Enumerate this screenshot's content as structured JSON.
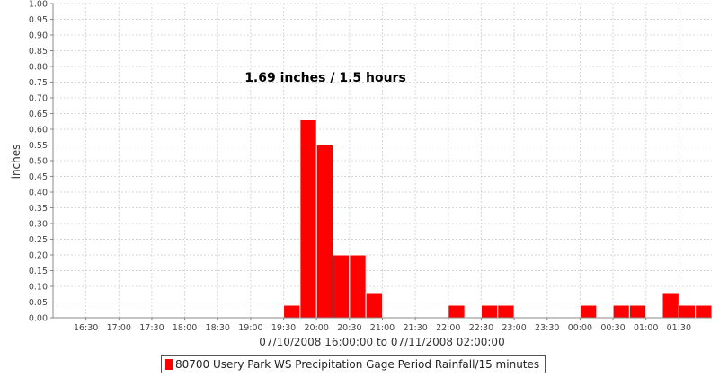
{
  "chart_data": {
    "type": "bar",
    "annotation": "1.69 inches / 1.5 hours",
    "xlabel": "07/10/2008 16:00:00 to 07/11/2008 02:00:00",
    "ylabel": "inches",
    "ylim": [
      0,
      1.0
    ],
    "y_ticks": [
      "0.00",
      "0.05",
      "0.10",
      "0.15",
      "0.20",
      "0.25",
      "0.30",
      "0.35",
      "0.40",
      "0.45",
      "0.50",
      "0.55",
      "0.60",
      "0.65",
      "0.70",
      "0.75",
      "0.80",
      "0.85",
      "0.90",
      "0.95",
      "1.00"
    ],
    "x_tick_labels": [
      "16:30",
      "17:00",
      "17:30",
      "18:00",
      "18:30",
      "19:00",
      "19:30",
      "20:00",
      "20:30",
      "21:00",
      "21:30",
      "22:00",
      "22:30",
      "23:00",
      "23:30",
      "00:00",
      "00:30",
      "01:00",
      "01:30"
    ],
    "grid": true,
    "bar_color": "#ff0000",
    "legend_position": "bottom",
    "series": [
      {
        "name": "80700 Usery Park WS Precipitation Gage Period Rainfall/15 minutes",
        "points": [
          {
            "start": "19:30",
            "value": 0.04
          },
          {
            "start": "19:45",
            "value": 0.63
          },
          {
            "start": "20:00",
            "value": 0.55
          },
          {
            "start": "20:15",
            "value": 0.2
          },
          {
            "start": "20:30",
            "value": 0.2
          },
          {
            "start": "20:45",
            "value": 0.08
          },
          {
            "start": "22:00",
            "value": 0.04
          },
          {
            "start": "22:30",
            "value": 0.04
          },
          {
            "start": "22:45",
            "value": 0.04
          },
          {
            "start": "00:00",
            "value": 0.04
          },
          {
            "start": "00:30",
            "value": 0.04
          },
          {
            "start": "00:45",
            "value": 0.04
          },
          {
            "start": "01:15",
            "value": 0.08
          },
          {
            "start": "01:30",
            "value": 0.04
          },
          {
            "start": "01:45",
            "value": 0.04
          }
        ]
      }
    ]
  }
}
